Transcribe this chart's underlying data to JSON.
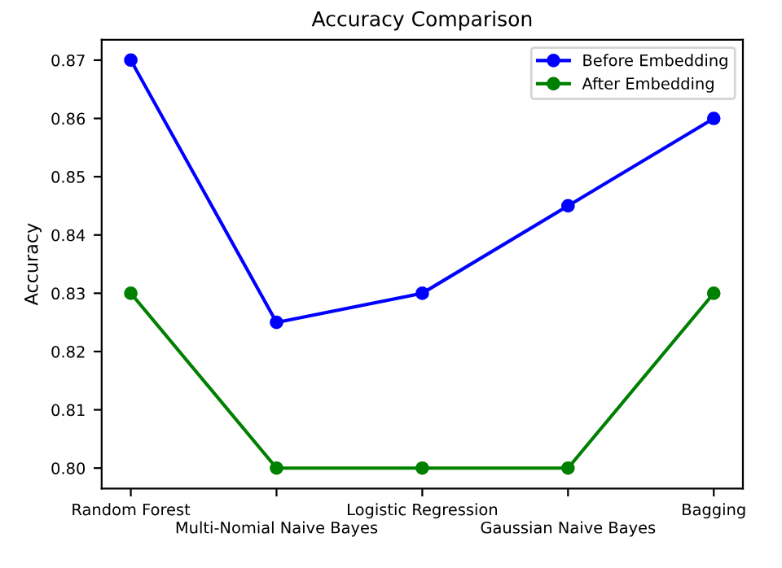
{
  "chart_data": {
    "type": "line",
    "title": "Accuracy Comparison",
    "ylabel": "Accuracy",
    "categories": [
      "Random Forest",
      "Multi-Nomial Naive Bayes",
      "Logistic Regression",
      "Gaussian Naive Bayes",
      "Bagging"
    ],
    "series": [
      {
        "name": "Before Embedding",
        "color": "#0000ff",
        "values": [
          0.87,
          0.825,
          0.83,
          0.845,
          0.86
        ]
      },
      {
        "name": "After Embedding",
        "color": "#008000",
        "values": [
          0.83,
          0.8,
          0.8,
          0.8,
          0.83
        ]
      }
    ],
    "ylim": [
      0.7965,
      0.8735
    ],
    "yticks": [
      {
        "value": 0.8,
        "label": "0.80"
      },
      0.81,
      0.82,
      0.83,
      0.84,
      0.85,
      0.86,
      0.87
    ],
    "legend": "top right",
    "marker": "circle",
    "line_style": "solid",
    "grid": false
  }
}
